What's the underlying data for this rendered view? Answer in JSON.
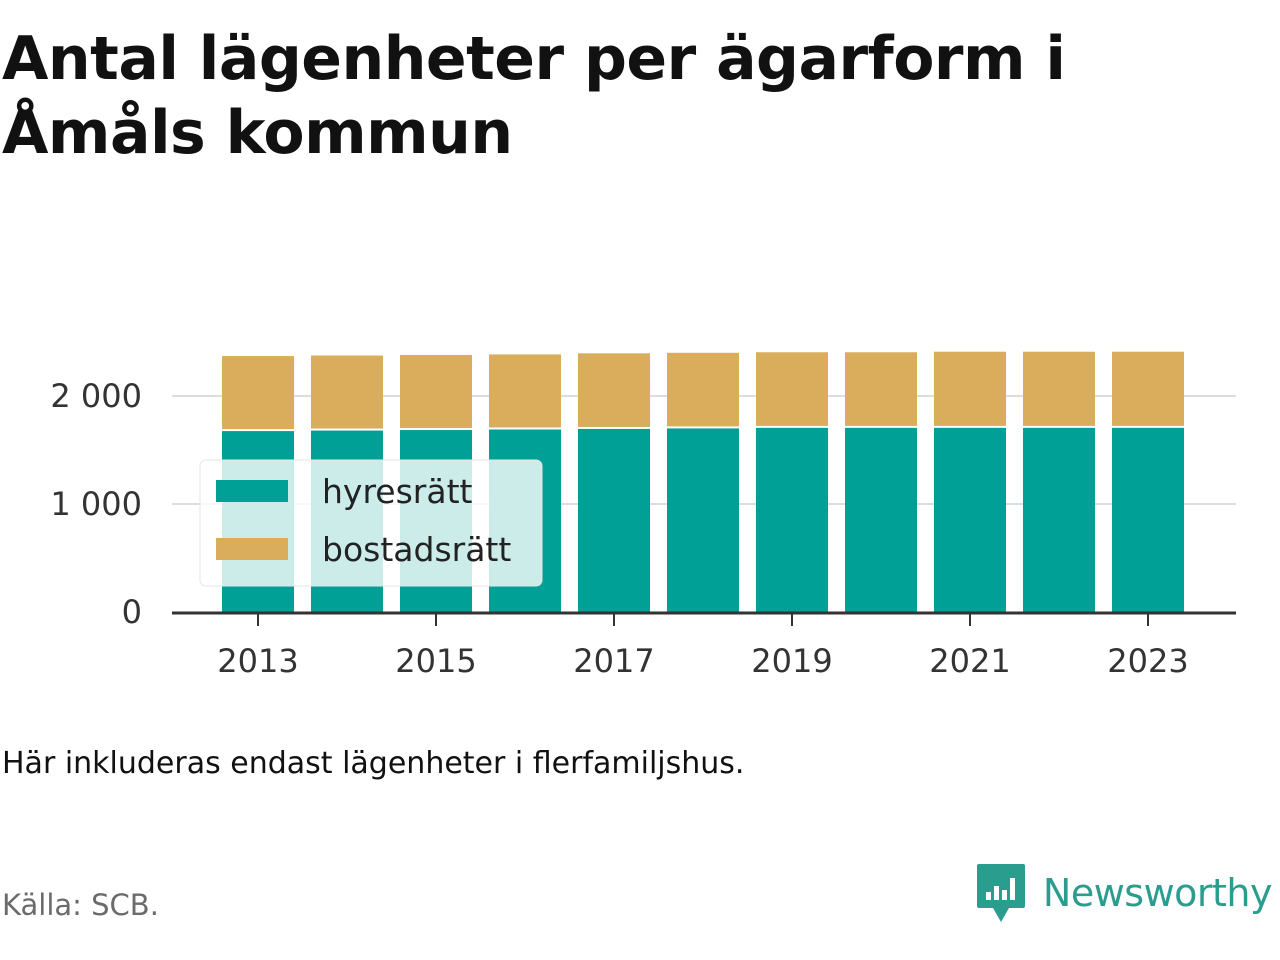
{
  "title": "Antal lägenheter per ägarform i Åmåls kommun",
  "note": "Här inkluderas endast lägenheter i flerfamiljshus.",
  "source": "Källa: SCB.",
  "brand": {
    "name": "Newsworthy",
    "icon": "newsworthy-logo-icon"
  },
  "colors": {
    "hyresratt": "#00a097",
    "bostadsratt": "#d9ad5b",
    "grid": "#dddddd",
    "axis": "#333333"
  },
  "chart_data": {
    "type": "bar",
    "stacked": true,
    "x": [
      2013,
      2014,
      2015,
      2016,
      2017,
      2018,
      2019,
      2020,
      2021,
      2022,
      2023
    ],
    "x_tick_labels": [
      "2013",
      "2015",
      "2017",
      "2019",
      "2021",
      "2023"
    ],
    "series": [
      {
        "name": "hyresrätt",
        "values": [
          1675,
          1680,
          1685,
          1690,
          1695,
          1700,
          1705,
          1705,
          1705,
          1705,
          1705
        ]
      },
      {
        "name": "bostadsrätt",
        "values": [
          695,
          695,
          695,
          695,
          700,
          700,
          700,
          700,
          705,
          705,
          705
        ]
      }
    ],
    "y_ticks": [
      0,
      1000,
      2000
    ],
    "y_tick_labels": [
      "0",
      "1 000",
      "2 000"
    ],
    "ylim": [
      0,
      2500
    ],
    "xlabel": "",
    "ylabel": "",
    "grid": true,
    "legend_position": "left"
  }
}
